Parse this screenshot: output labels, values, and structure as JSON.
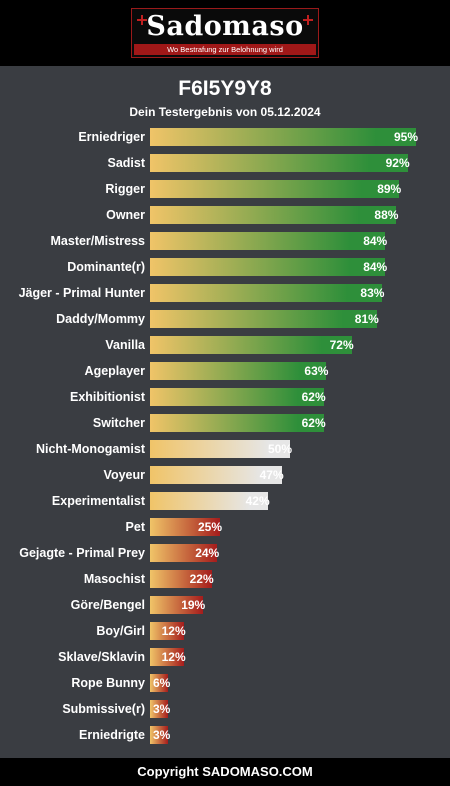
{
  "header": {
    "logo_text": "Sadomaso",
    "tagline": "Wo Bestrafung zur Belohnung wird"
  },
  "title": "F6I5Y9Y8",
  "subtitle": "Dein Testergebnis von 05.12.2024",
  "colors": {
    "bar_start": "#f0c468",
    "high_end": "#2e8f3a",
    "mid_end": "#e6e6e6",
    "low_end": "#a51c1c"
  },
  "chart_data": {
    "type": "bar",
    "orientation": "horizontal",
    "value_unit": "%",
    "xlim": [
      0,
      100
    ],
    "categories": [
      "Erniedriger",
      "Sadist",
      "Rigger",
      "Owner",
      "Master/Mistress",
      "Dominante(r)",
      "Jäger - Primal Hunter",
      "Daddy/Mommy",
      "Vanilla",
      "Ageplayer",
      "Exhibitionist",
      "Switcher",
      "Nicht-Monogamist",
      "Voyeur",
      "Experimentalist",
      "Pet",
      "Gejagte - Primal Prey",
      "Masochist",
      "Göre/Bengel",
      "Boy/Girl",
      "Sklave/Sklavin",
      "Rope Bunny",
      "Submissive(r)",
      "Erniedrigte"
    ],
    "values": [
      95,
      92,
      89,
      88,
      84,
      84,
      83,
      81,
      72,
      63,
      62,
      62,
      50,
      47,
      42,
      25,
      24,
      22,
      19,
      12,
      12,
      6,
      3,
      3
    ],
    "value_labels": [
      "95%",
      "92%",
      "89%",
      "88%",
      "84%",
      "84%",
      "83%",
      "81%",
      "72%",
      "63%",
      "62%",
      "62%",
      "50%",
      "47%",
      "42%",
      "25%",
      "24%",
      "22%",
      "19%",
      "12%",
      "12%",
      "6%",
      "3%",
      "3%"
    ]
  },
  "footer": {
    "copyright": "Copyright SADOMASO.COM"
  }
}
